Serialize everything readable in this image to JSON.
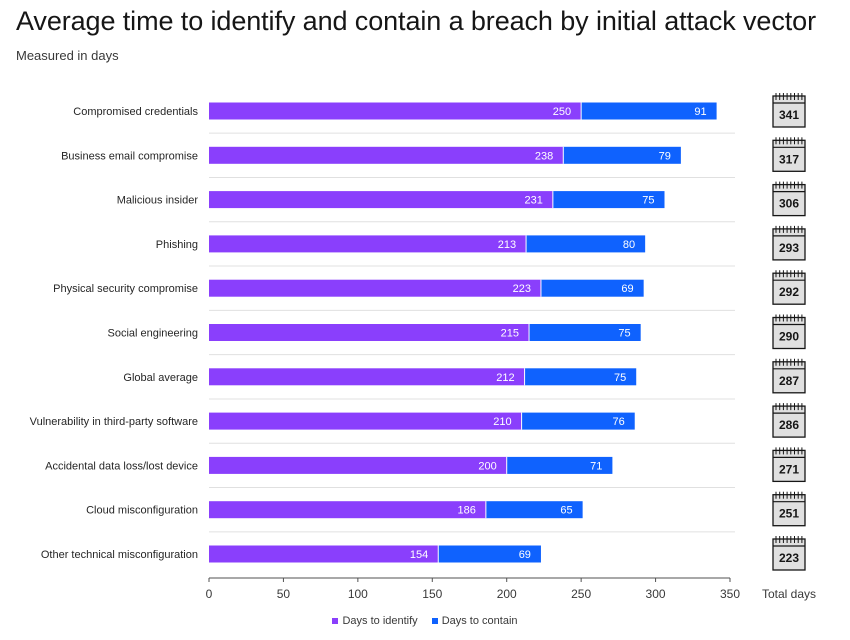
{
  "title": "Average time to identify and contain a breach by initial attack vector",
  "subtitle": "Measured in days",
  "colors": {
    "identify": "#8a3ffc",
    "contain": "#0f62fe",
    "grid": "#e0e0e0",
    "axis": "#525252",
    "calendar_fill": "#e0e0e0"
  },
  "chart_data": {
    "type": "bar",
    "orientation": "horizontal",
    "stacked": true,
    "categories": [
      "Compromised credentials",
      "Business email compromise",
      "Malicious insider",
      "Phishing",
      "Physical security compromise",
      "Social engineering",
      "Global average",
      "Vulnerability in third-party software",
      "Accidental data loss/lost device",
      "Cloud misconfiguration",
      "Other technical misconfiguration"
    ],
    "series": [
      {
        "name": "Days to identify",
        "values": [
          250,
          238,
          231,
          213,
          223,
          215,
          212,
          210,
          200,
          186,
          154
        ]
      },
      {
        "name": "Days to contain",
        "values": [
          91,
          79,
          75,
          80,
          69,
          75,
          75,
          76,
          71,
          65,
          69
        ]
      }
    ],
    "totals": [
      341,
      317,
      306,
      293,
      292,
      290,
      287,
      286,
      271,
      251,
      223
    ],
    "totals_label": "Total days",
    "totals_icon": "calendar-icon",
    "xlim": [
      0,
      350
    ],
    "xticks": [
      0,
      50,
      100,
      150,
      200,
      250,
      300,
      350
    ],
    "grid": "horizontal separators",
    "legend_position": "bottom-center"
  }
}
